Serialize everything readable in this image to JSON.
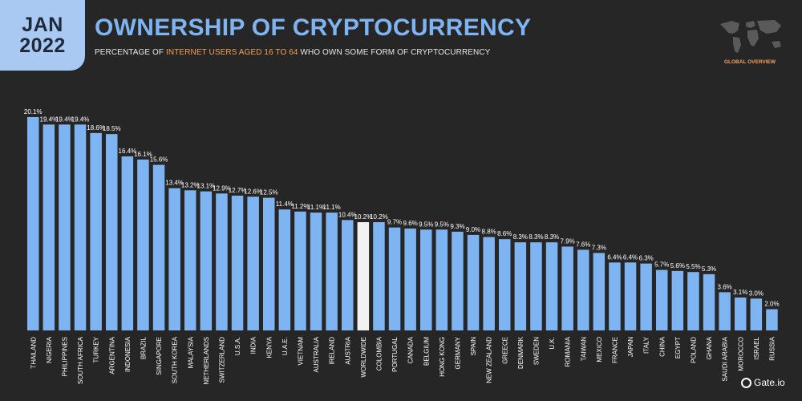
{
  "header": {
    "month": "JAN",
    "year": "2022",
    "title": "OWNERSHIP OF CRYPTOCURRENCY",
    "subtitle_pre": "PERCENTAGE OF ",
    "subtitle_highlight": "INTERNET USERS AGED 16 TO 64",
    "subtitle_post": " WHO OWN SOME FORM OF CRYPTOCURRENCY",
    "map_label": "GLOBAL OVERVIEW"
  },
  "brand": {
    "bottom_right": "Gate.io"
  },
  "colors": {
    "background": "#262626",
    "bar": "#7fb4f3",
    "bar_highlight": "#f2f2f2",
    "title": "#7fb4f3",
    "accent": "#f7a15a",
    "badge": "#a9c8f2"
  },
  "chart_data": {
    "type": "bar",
    "title": "OWNERSHIP OF CRYPTOCURRENCY",
    "xlabel": "",
    "ylabel": "",
    "ylim": [
      0,
      20.1
    ],
    "grid": false,
    "highlight_category": "WORLDWIDE",
    "categories": [
      "THAILAND",
      "NIGERIA",
      "PHILIPPINES",
      "SOUTH AFRICA",
      "TURKEY",
      "ARGENTINA",
      "INDONESIA",
      "BRAZIL",
      "SINGAPORE",
      "SOUTH KOREA",
      "MALAYSIA",
      "NETHERLANDS",
      "SWITZERLAND",
      "U.S.A.",
      "INDIA",
      "KENYA",
      "U.A.E.",
      "VIETNAM",
      "AUSTRALIA",
      "IRELAND",
      "AUSTRIA",
      "WORLDWIDE",
      "COLOMBIA",
      "PORTUGAL",
      "CANADA",
      "BELGIUM",
      "HONG KONG",
      "GERMANY",
      "SPAIN",
      "NEW ZEALAND",
      "GREECE",
      "DENMARK",
      "SWEDEN",
      "U.K.",
      "ROMANIA",
      "TAIWAN",
      "MEXICO",
      "FRANCE",
      "JAPAN",
      "ITALY",
      "CHINA",
      "EGYPT",
      "POLAND",
      "GHANA",
      "SAUDI ARABIA",
      "MOROCCO",
      "ISRAEL",
      "RUSSIA"
    ],
    "values": [
      20.1,
      19.4,
      19.4,
      19.4,
      18.6,
      18.5,
      16.4,
      16.1,
      15.6,
      13.4,
      13.2,
      13.1,
      12.9,
      12.7,
      12.6,
      12.5,
      11.4,
      11.2,
      11.1,
      11.1,
      10.4,
      10.2,
      10.2,
      9.7,
      9.6,
      9.5,
      9.5,
      9.3,
      9.0,
      8.8,
      8.6,
      8.3,
      8.3,
      8.3,
      7.9,
      7.6,
      7.3,
      6.4,
      6.4,
      6.3,
      5.7,
      5.6,
      5.5,
      5.3,
      3.6,
      3.1,
      3.0,
      2.0
    ],
    "labels": [
      "20.1%",
      "19.4%",
      "19.4%",
      "19.4%",
      "18.6%",
      "18.5%",
      "16.4%",
      "16.1%",
      "15.6%",
      "13.4%",
      "13.2%",
      "13.1%",
      "12.9%",
      "12.7%",
      "12.6%",
      "12.5%",
      "11.4%",
      "11.2%",
      "11.1%",
      "11.1%",
      "10.4%",
      "10.2%",
      "10.2%",
      "9.7%",
      "9.6%",
      "9.5%",
      "9.5%",
      "9.3%",
      "9.0%",
      "8.8%",
      "8.6%",
      "8.3%",
      "8.3%",
      "8.3%",
      "7.9%",
      "7.6%",
      "7.3%",
      "6.4%",
      "6.4%",
      "6.3%",
      "5.7%",
      "5.6%",
      "5.5%",
      "5.3%",
      "3.6%",
      "3.1%",
      "3.0%",
      "2.0%"
    ]
  }
}
